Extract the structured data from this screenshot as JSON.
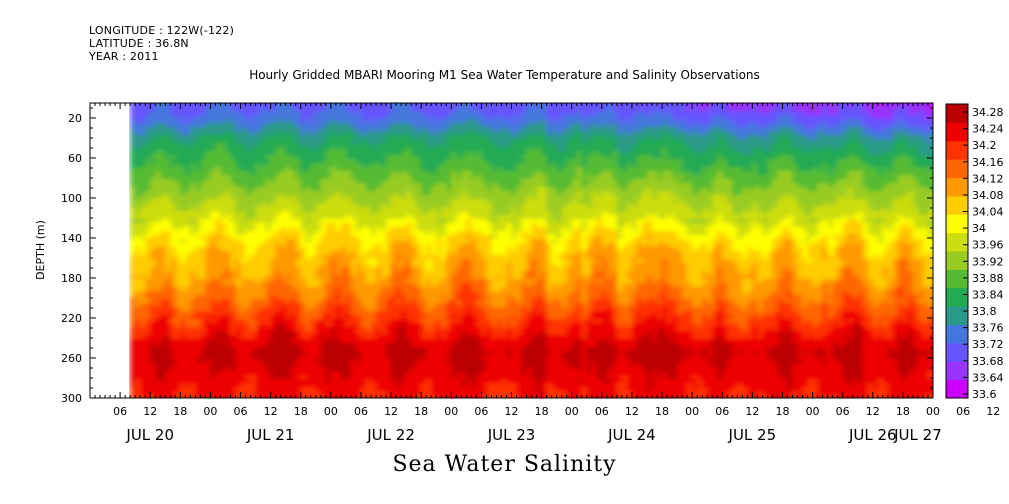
{
  "header": {
    "longitude": "LONGITUDE : 122W(-122)",
    "latitude": "LATITUDE : 36.8N",
    "year": "YEAR : 2011"
  },
  "chart_data": {
    "type": "heatmap",
    "title": "Hourly Gridded MBARI Mooring M1 Sea Water Temperature and Salinity Observations",
    "ylabel": "DEPTH (m)",
    "variable_label": "Sea Water Salinity",
    "y_ticks": [
      "20",
      "60",
      "100",
      "140",
      "180",
      "220",
      "260",
      "300"
    ],
    "ylim": [
      300,
      5
    ],
    "x_hour_ticks": [
      "06",
      "12",
      "18",
      "00",
      "06",
      "12",
      "18",
      "00",
      "06",
      "12",
      "18",
      "00",
      "06",
      "12",
      "18",
      "00",
      "06",
      "12",
      "18",
      "00",
      "06",
      "12",
      "18",
      "00",
      "06",
      "12",
      "18",
      "00",
      "06",
      "12",
      "18",
      "00"
    ],
    "x_date_labels": [
      "JUL 20",
      "JUL 21",
      "JUL 22",
      "JUL 23",
      "JUL 24",
      "JUL 25",
      "JUL 26",
      "JUL 27"
    ],
    "time_range_hours": [
      0,
      168
    ],
    "data_start_hour": 10,
    "colorbar_labels": [
      "34.28",
      "34.24",
      "34.2",
      "34.16",
      "34.12",
      "34.08",
      "34.04",
      "34",
      "33.96",
      "33.92",
      "33.88",
      "33.84",
      "33.8",
      "33.76",
      "33.72",
      "33.68",
      "33.64",
      "33.6"
    ],
    "colorbar_range": [
      33.6,
      34.3
    ],
    "colormap": [
      "#cc00ff",
      "#9933ff",
      "#6655ff",
      "#4477dd",
      "#2a9988",
      "#22aa55",
      "#55bb33",
      "#99cc22",
      "#ccdd11",
      "#ffff00",
      "#ffcc00",
      "#ff9900",
      "#ff6600",
      "#ff3300",
      "#ee0000",
      "#bb0000"
    ],
    "depth_profile": [
      {
        "depth": 10,
        "value": 33.72
      },
      {
        "depth": 25,
        "value": 33.76
      },
      {
        "depth": 40,
        "value": 33.82
      },
      {
        "depth": 60,
        "value": 33.86
      },
      {
        "depth": 80,
        "value": 33.9
      },
      {
        "depth": 100,
        "value": 33.94
      },
      {
        "depth": 120,
        "value": 33.98
      },
      {
        "depth": 140,
        "value": 34.04
      },
      {
        "depth": 160,
        "value": 34.08
      },
      {
        "depth": 180,
        "value": 34.1
      },
      {
        "depth": 200,
        "value": 34.14
      },
      {
        "depth": 220,
        "value": 34.19
      },
      {
        "depth": 240,
        "value": 34.24
      },
      {
        "depth": 255,
        "value": 34.27
      },
      {
        "depth": 270,
        "value": 34.25
      },
      {
        "depth": 300,
        "value": 34.22
      }
    ]
  }
}
